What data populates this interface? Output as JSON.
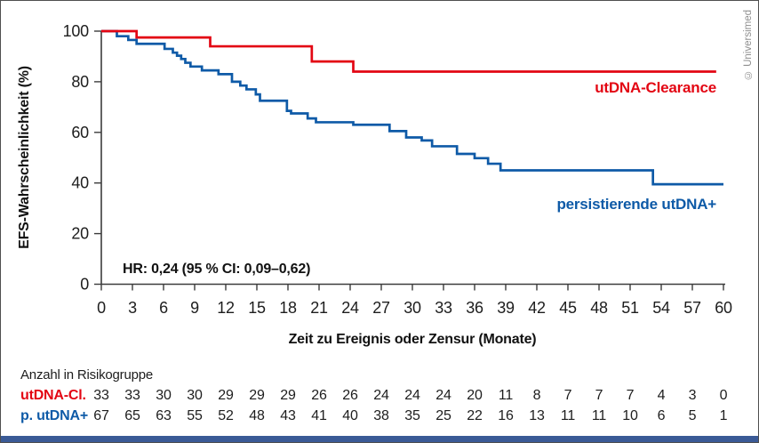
{
  "copyright": "© Universimed",
  "palette": {
    "red": "#e30613",
    "blue": "#0e5aa7",
    "axis": "#3c3c3c",
    "text": "#1d1d1d",
    "muted": "#8f8f8f",
    "bottom_bar": "#3a5a96",
    "border": "#4f4f4f"
  },
  "chart_data": {
    "type": "line",
    "subtype": "kaplan-meier-step",
    "title": "",
    "xlabel": "Zeit zu Ereignis oder Zensur (Monate)",
    "ylabel": "EFS-Wahrscheinlichkeit (%)",
    "xlim": [
      0,
      60
    ],
    "ylim": [
      0,
      100
    ],
    "x_ticks": [
      0,
      3,
      6,
      9,
      12,
      15,
      18,
      21,
      24,
      27,
      30,
      33,
      36,
      39,
      42,
      45,
      48,
      51,
      54,
      57,
      60
    ],
    "y_ticks": [
      0,
      20,
      40,
      60,
      80,
      100
    ],
    "grid": false,
    "legend_position": "inline-right",
    "annotation": "HR: 0,24 (95 % CI: 0,09–0,62)",
    "series": [
      {
        "name": "persistierende utDNA+",
        "color": "#0e5aa7",
        "points_t_pct": [
          [
            0,
            100
          ],
          [
            1.5,
            98
          ],
          [
            2.6,
            96.5
          ],
          [
            3.4,
            95
          ],
          [
            6.1,
            93
          ],
          [
            6.9,
            91.5
          ],
          [
            7.3,
            90.3
          ],
          [
            7.7,
            89
          ],
          [
            8.1,
            87.5
          ],
          [
            8.6,
            86
          ],
          [
            9.7,
            84.5
          ],
          [
            11.3,
            83
          ],
          [
            12.6,
            80
          ],
          [
            13.4,
            78.5
          ],
          [
            14,
            77
          ],
          [
            14.9,
            75
          ],
          [
            15.3,
            72.5
          ],
          [
            17.9,
            68.5
          ],
          [
            18.3,
            67.5
          ],
          [
            19.9,
            65.5
          ],
          [
            20.7,
            64
          ],
          [
            24.3,
            63
          ],
          [
            27.8,
            60.5
          ],
          [
            29.4,
            58
          ],
          [
            30.9,
            56.8
          ],
          [
            31.9,
            54.5
          ],
          [
            34.3,
            51.5
          ],
          [
            36,
            49.8
          ],
          [
            37.3,
            47.6
          ],
          [
            38.5,
            45
          ],
          [
            53.1,
            45
          ],
          [
            53.2,
            39.5
          ],
          [
            60,
            39.5
          ]
        ]
      },
      {
        "name": "utDNA-Clearance",
        "color": "#e30613",
        "points_t_pct": [
          [
            0,
            100
          ],
          [
            3.4,
            97.5
          ],
          [
            10.5,
            94
          ],
          [
            20.3,
            88
          ],
          [
            24.3,
            84
          ],
          [
            59.3,
            84
          ]
        ]
      }
    ]
  },
  "risk_table": {
    "title": "Anzahl in Risikogruppe",
    "times": [
      0,
      3,
      6,
      9,
      12,
      15,
      18,
      21,
      24,
      27,
      30,
      33,
      36,
      39,
      42,
      45,
      48,
      51,
      54,
      57,
      60
    ],
    "rows": [
      {
        "label": "utDNA-Cl.",
        "color": "#e30613",
        "values": [
          33,
          33,
          30,
          30,
          29,
          29,
          29,
          26,
          26,
          24,
          24,
          24,
          20,
          11,
          8,
          7,
          7,
          7,
          4,
          3,
          0
        ]
      },
      {
        "label": "p. utDNA+",
        "color": "#0e5aa7",
        "values": [
          67,
          65,
          63,
          55,
          52,
          48,
          43,
          41,
          40,
          38,
          35,
          25,
          22,
          16,
          13,
          11,
          11,
          10,
          6,
          5,
          1
        ]
      }
    ]
  }
}
